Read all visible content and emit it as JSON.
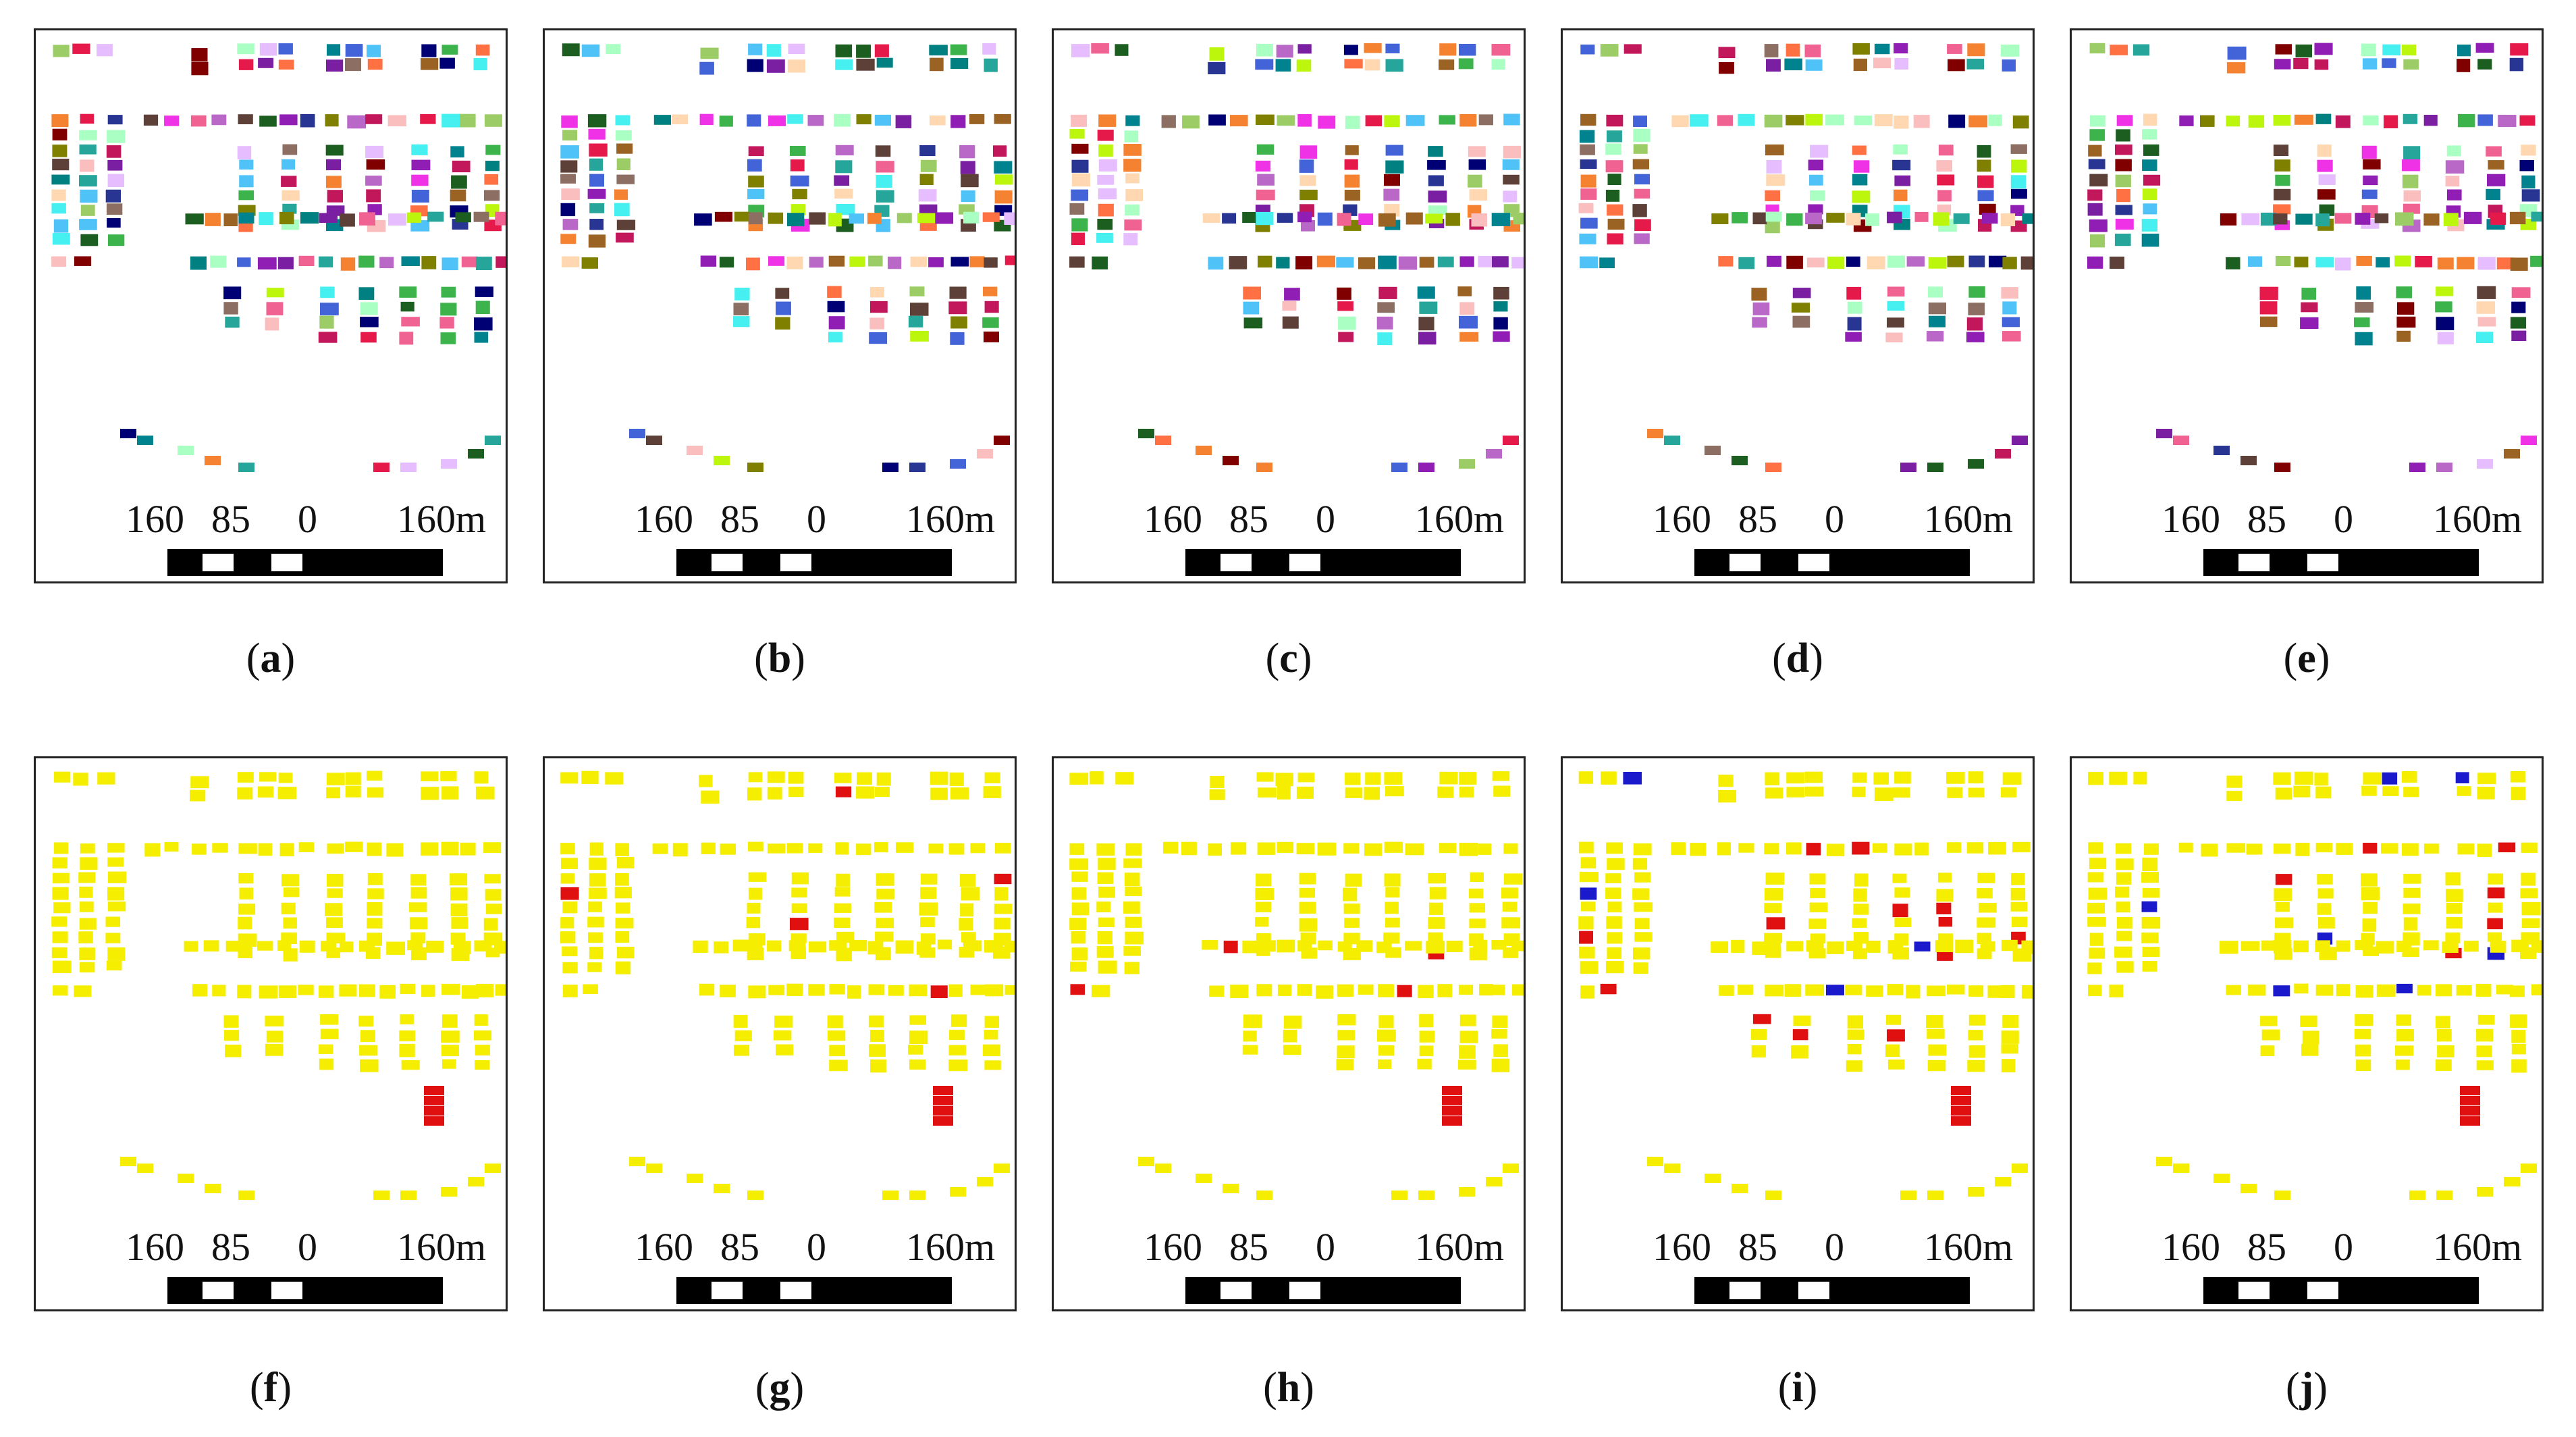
{
  "figure": {
    "scale_labels": [
      "160",
      "85",
      "0",
      "160m"
    ],
    "panels": [
      {
        "label": "a",
        "mode": "random-colors"
      },
      {
        "label": "b",
        "mode": "random-colors"
      },
      {
        "label": "c",
        "mode": "random-colors"
      },
      {
        "label": "d",
        "mode": "random-colors"
      },
      {
        "label": "e",
        "mode": "random-colors"
      },
      {
        "label": "f",
        "mode": "classified"
      },
      {
        "label": "g",
        "mode": "classified"
      },
      {
        "label": "h",
        "mode": "classified"
      },
      {
        "label": "i",
        "mode": "classified"
      },
      {
        "label": "j",
        "mode": "classified"
      }
    ],
    "colors": {
      "classified_base": "#f5ee00",
      "error_red": "#e01010",
      "error_blue": "#1a1acc",
      "scalebar": "#000000"
    }
  }
}
